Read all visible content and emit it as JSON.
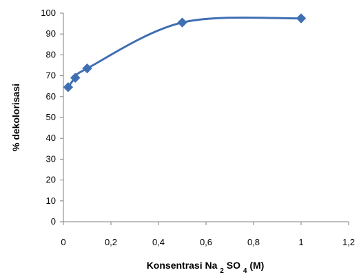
{
  "chart_data": {
    "type": "line",
    "title": "",
    "xlabel": {
      "main": "Konsentrasi Na",
      "sub1": "2",
      "mid": "SO",
      "sub2": "4",
      "end": " (M)"
    },
    "ylabel": "% dekolorisasi",
    "xlim": [
      0,
      1.2
    ],
    "ylim": [
      0,
      100
    ],
    "x_ticks": [
      "0",
      "0,2",
      "0,4",
      "0,6",
      "0,8",
      "1",
      "1,2"
    ],
    "y_ticks": [
      "0",
      "10",
      "20",
      "30",
      "40",
      "50",
      "60",
      "70",
      "80",
      "90",
      "100"
    ],
    "grid": false,
    "legend": "none",
    "series": [
      {
        "x": [
          0.02,
          0.05,
          0.1,
          0.5,
          1.0
        ],
        "y": [
          64.5,
          69,
          73.5,
          95.5,
          97.5
        ],
        "color": "#3f6fb3",
        "marker": "diamond"
      }
    ]
  }
}
